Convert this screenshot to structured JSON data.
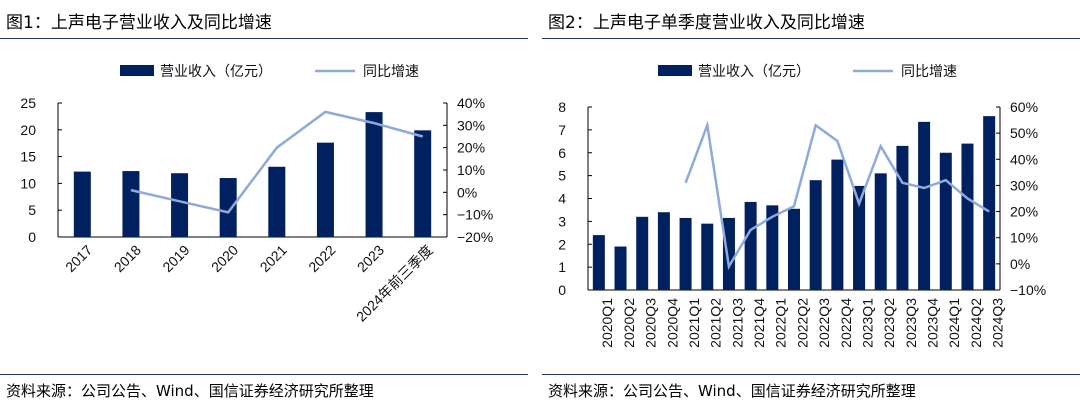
{
  "colors": {
    "bar": "#002060",
    "line": "#8eaadb"
  },
  "chart_data": [
    {
      "type": "bar",
      "title": "图1：上声电子营业收入及同比增速",
      "categories": [
        "2017",
        "2018",
        "2019",
        "2020",
        "2021",
        "2022",
        "2023",
        "2024年前三季度"
      ],
      "series": [
        {
          "name": "营业收入（亿元）",
          "type": "bar",
          "axis": "left",
          "values": [
            12.2,
            12.3,
            11.9,
            11.0,
            13.1,
            17.6,
            23.3,
            19.9
          ]
        },
        {
          "name": "同比增速",
          "type": "line",
          "axis": "right",
          "values": [
            null,
            1,
            -4,
            -9,
            20,
            36,
            31,
            25
          ]
        }
      ],
      "ylim": [
        0,
        25
      ],
      "yticks": [
        "0",
        "5",
        "10",
        "15",
        "20",
        "25"
      ],
      "y2lim": [
        -20,
        40
      ],
      "y2ticks": [
        "-20%",
        "-10%",
        "0%",
        "10%",
        "20%",
        "30%",
        "40%"
      ],
      "legend": "top",
      "source": "资料来源：公司公告、Wind、国信证券经济研究所整理"
    },
    {
      "type": "bar",
      "title": "图2：上声电子单季度营业收入及同比增速",
      "categories": [
        "2020Q1",
        "2020Q2",
        "2020Q3",
        "2020Q4",
        "2021Q1",
        "2021Q2",
        "2021Q3",
        "2021Q4",
        "2022Q1",
        "2022Q2",
        "2022Q3",
        "2022Q4",
        "2023Q1",
        "2023Q2",
        "2023Q3",
        "2023Q4",
        "2024Q1",
        "2024Q2",
        "2024Q3"
      ],
      "series": [
        {
          "name": "营业收入（亿元）",
          "type": "bar",
          "axis": "left",
          "values": [
            2.4,
            1.9,
            3.2,
            3.4,
            3.15,
            2.9,
            3.15,
            3.85,
            3.7,
            3.55,
            4.8,
            5.7,
            4.55,
            5.1,
            6.3,
            7.35,
            6.0,
            6.4,
            7.6
          ]
        },
        {
          "name": "同比增速",
          "type": "line",
          "axis": "right",
          "values": [
            null,
            null,
            null,
            null,
            31,
            53,
            -1,
            13,
            18,
            22,
            53,
            47,
            23,
            45,
            31,
            29,
            32,
            25,
            20
          ]
        }
      ],
      "ylim": [
        0,
        8
      ],
      "yticks": [
        "0",
        "1",
        "2",
        "3",
        "4",
        "5",
        "6",
        "7",
        "8"
      ],
      "y2lim": [
        -10,
        60
      ],
      "y2ticks": [
        "-10%",
        "0%",
        "10%",
        "20%",
        "30%",
        "40%",
        "50%",
        "60%"
      ],
      "legend": "top",
      "source": "资料来源：公司公告、Wind、国信证券经济研究所整理"
    }
  ]
}
